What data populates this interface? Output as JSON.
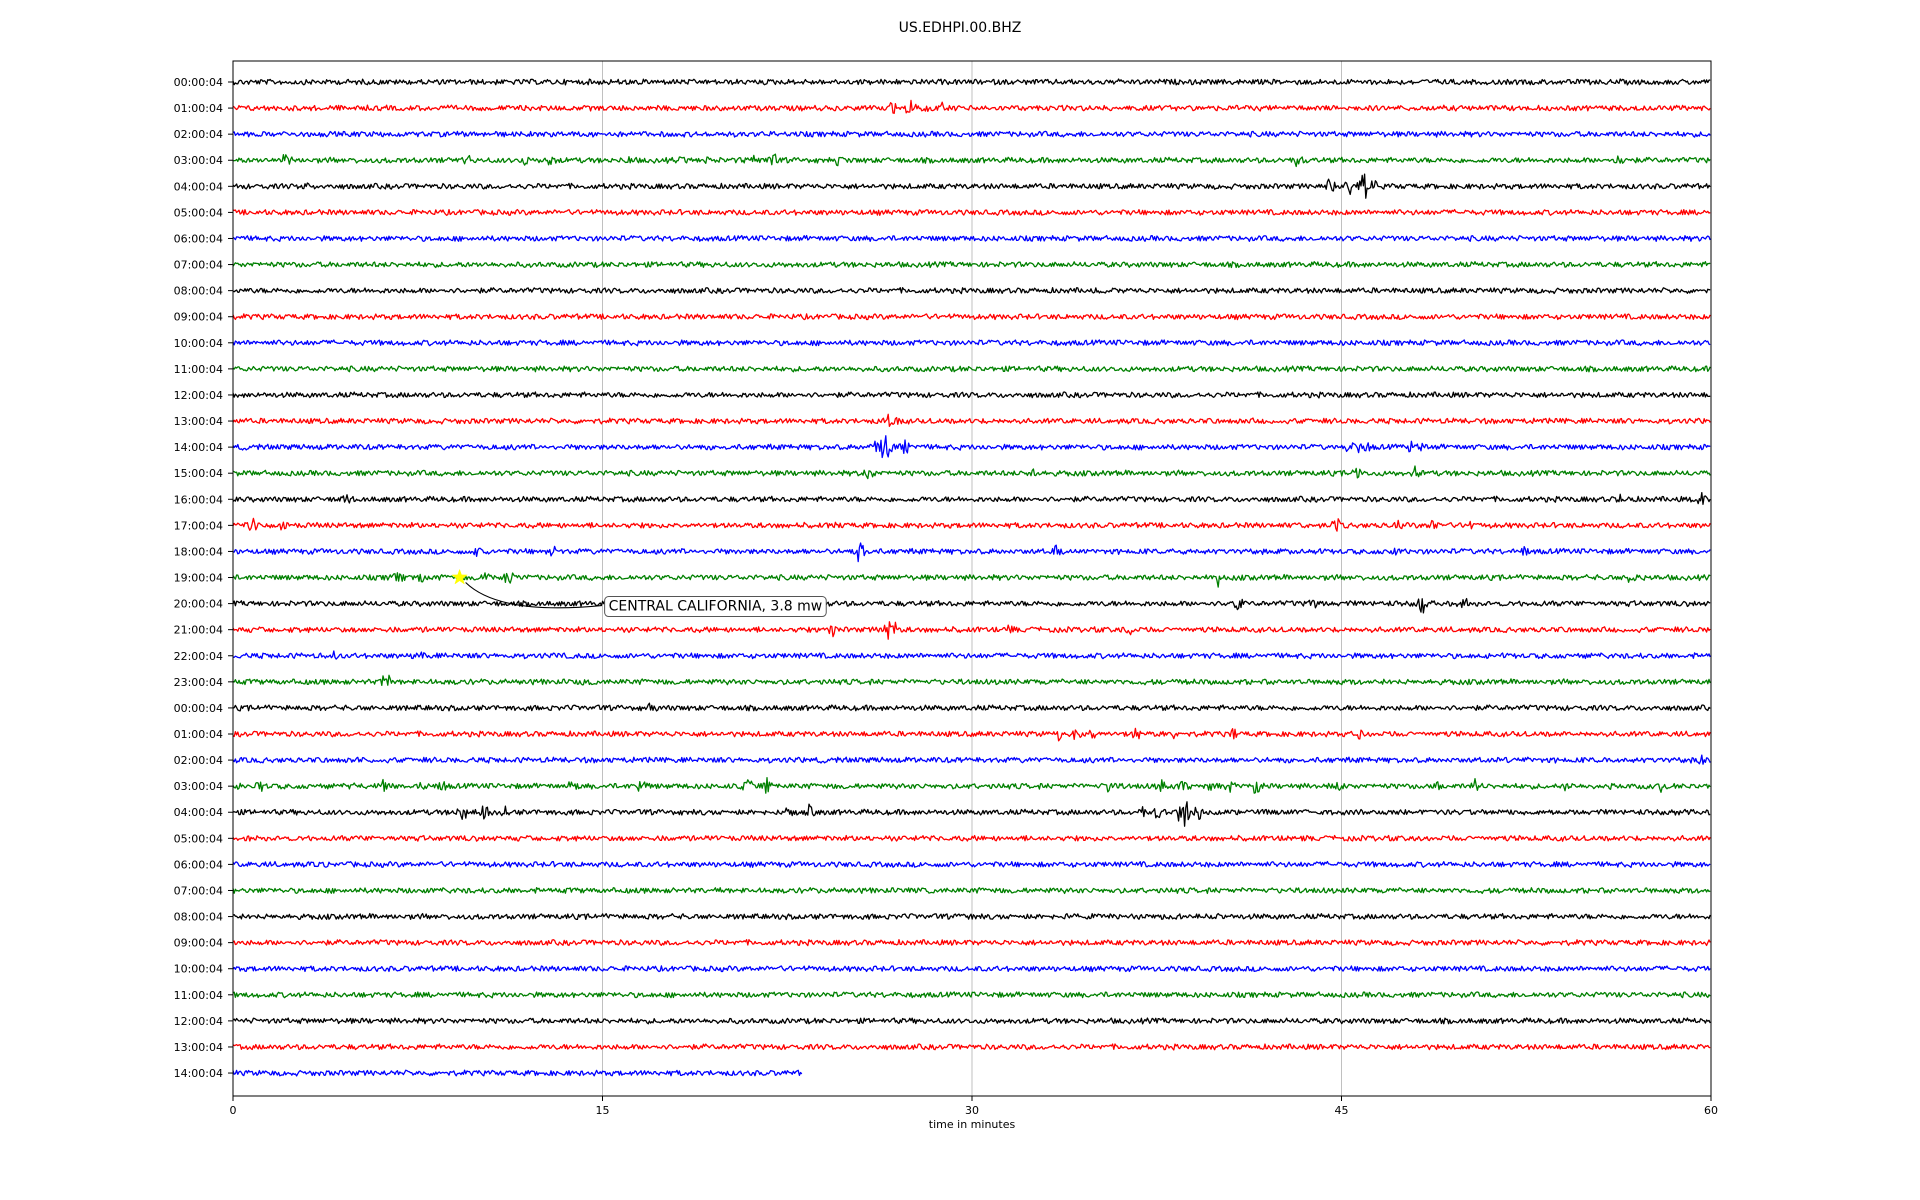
{
  "chart_data": {
    "type": "line",
    "title": "US.EDHPI.00.BHZ",
    "xlabel": "time in minutes",
    "ylabel": "",
    "xlim": [
      0,
      60
    ],
    "xticks": [
      "0",
      "15",
      "30",
      "45",
      "60"
    ],
    "xtick_values": [
      0,
      15,
      30,
      45,
      60
    ],
    "grid": "vertical",
    "colors": [
      "#000000",
      "#ff0000",
      "#0000ff",
      "#008000"
    ],
    "rows": [
      {
        "label": "00:00:04",
        "end": 60,
        "bursts": [
          [
            16.2,
            4
          ]
        ]
      },
      {
        "label": "01:00:04",
        "end": 60,
        "bursts": [
          [
            26.8,
            10
          ],
          [
            27.5,
            14
          ],
          [
            28.2,
            10
          ],
          [
            28.8,
            8
          ]
        ]
      },
      {
        "label": "02:00:04",
        "end": 60,
        "bursts": []
      },
      {
        "label": "03:00:04",
        "end": 60,
        "bursts": [
          [
            2.2,
            10
          ],
          [
            9.5,
            8
          ],
          [
            11.8,
            10
          ],
          [
            12.9,
            10
          ],
          [
            16.0,
            8
          ],
          [
            18.2,
            6
          ],
          [
            19.3,
            6
          ],
          [
            21.1,
            10
          ],
          [
            21.9,
            14
          ],
          [
            24.6,
            8
          ],
          [
            43.2,
            10
          ],
          [
            56.3,
            8
          ]
        ]
      },
      {
        "label": "04:00:04",
        "end": 60,
        "bursts": [
          [
            3.0,
            6
          ],
          [
            44.5,
            14
          ],
          [
            45.3,
            12
          ],
          [
            45.8,
            30
          ],
          [
            46.3,
            10
          ]
        ]
      },
      {
        "label": "05:00:04",
        "end": 60,
        "bursts": []
      },
      {
        "label": "06:00:04",
        "end": 60,
        "bursts": []
      },
      {
        "label": "07:00:04",
        "end": 60,
        "bursts": []
      },
      {
        "label": "08:00:04",
        "end": 60,
        "bursts": [
          [
            35.4,
            4
          ]
        ]
      },
      {
        "label": "09:00:04",
        "end": 60,
        "bursts": []
      },
      {
        "label": "10:00:04",
        "end": 60,
        "bursts": []
      },
      {
        "label": "11:00:04",
        "end": 60,
        "bursts": []
      },
      {
        "label": "12:00:04",
        "end": 60,
        "bursts": []
      },
      {
        "label": "13:00:04",
        "end": 60,
        "bursts": [
          [
            26.6,
            10
          ],
          [
            27.0,
            6
          ]
        ]
      },
      {
        "label": "14:00:04",
        "end": 60,
        "bursts": [
          [
            26.1,
            12
          ],
          [
            26.5,
            28
          ],
          [
            27.3,
            10
          ],
          [
            45.2,
            10
          ],
          [
            45.6,
            10
          ],
          [
            46.0,
            8
          ],
          [
            47.8,
            8
          ],
          [
            48.2,
            8
          ]
        ]
      },
      {
        "label": "15:00:04",
        "end": 60,
        "bursts": [
          [
            25.8,
            8
          ],
          [
            32.5,
            8
          ],
          [
            45.6,
            12
          ],
          [
            48.0,
            8
          ]
        ]
      },
      {
        "label": "16:00:04",
        "end": 60,
        "bursts": [
          [
            4.6,
            6
          ],
          [
            56.4,
            12
          ],
          [
            59.6,
            12
          ]
        ]
      },
      {
        "label": "17:00:04",
        "end": 60,
        "bursts": [
          [
            0.8,
            14
          ],
          [
            2.0,
            12
          ],
          [
            24.4,
            6
          ],
          [
            43.5,
            6
          ],
          [
            44.8,
            10
          ],
          [
            47.3,
            6
          ],
          [
            48.7,
            8
          ],
          [
            50.3,
            6
          ]
        ]
      },
      {
        "label": "18:00:04",
        "end": 60,
        "bursts": [
          [
            9.9,
            8
          ],
          [
            13.0,
            8
          ],
          [
            25.5,
            18
          ],
          [
            33.4,
            8
          ],
          [
            47.2,
            6
          ],
          [
            52.4,
            8
          ]
        ]
      },
      {
        "label": "19:00:04",
        "end": 60,
        "bursts": [
          [
            6.7,
            8
          ],
          [
            7.6,
            10
          ],
          [
            11.2,
            14
          ],
          [
            10.3,
            8
          ],
          [
            40.0,
            10
          ],
          [
            56.8,
            10
          ]
        ]
      },
      {
        "label": "20:00:04",
        "end": 60,
        "bursts": [
          [
            21.3,
            10
          ],
          [
            40.8,
            10
          ],
          [
            43.9,
            10
          ],
          [
            48.3,
            12
          ],
          [
            50.0,
            8
          ]
        ]
      },
      {
        "label": "21:00:04",
        "end": 60,
        "bursts": [
          [
            24.3,
            12
          ],
          [
            26.7,
            22
          ],
          [
            31.5,
            8
          ],
          [
            36.4,
            8
          ]
        ]
      },
      {
        "label": "22:00:04",
        "end": 60,
        "bursts": [
          [
            4.1,
            6
          ],
          [
            7.6,
            6
          ],
          [
            13.5,
            4
          ],
          [
            51.1,
            4
          ]
        ]
      },
      {
        "label": "23:00:04",
        "end": 60,
        "bursts": [
          [
            6.2,
            12
          ],
          [
            14.2,
            8
          ]
        ]
      },
      {
        "label": "00:00:04",
        "end": 60,
        "bursts": [
          [
            17.0,
            8
          ]
        ]
      },
      {
        "label": "01:00:04",
        "end": 60,
        "bursts": [
          [
            33.5,
            8
          ],
          [
            34.2,
            10
          ],
          [
            34.9,
            8
          ],
          [
            36.7,
            10
          ],
          [
            38.2,
            6
          ],
          [
            40.6,
            8
          ],
          [
            45.7,
            8
          ],
          [
            54.3,
            4
          ]
        ]
      },
      {
        "label": "02:00:04",
        "end": 60,
        "bursts": [
          [
            5.1,
            4
          ],
          [
            52.3,
            4
          ],
          [
            56.0,
            4
          ],
          [
            59.6,
            8
          ]
        ]
      },
      {
        "label": "03:00:04",
        "end": 60,
        "bursts": [
          [
            0.4,
            8
          ],
          [
            1.1,
            8
          ],
          [
            5.0,
            6
          ],
          [
            6.1,
            8
          ],
          [
            7.8,
            12
          ],
          [
            8.5,
            8
          ],
          [
            13.8,
            10
          ],
          [
            16.6,
            10
          ],
          [
            20.9,
            10
          ],
          [
            21.7,
            10
          ],
          [
            35.6,
            10
          ],
          [
            37.7,
            10
          ],
          [
            38.6,
            14
          ],
          [
            39.7,
            8
          ],
          [
            40.5,
            10
          ],
          [
            41.6,
            14
          ],
          [
            44.9,
            8
          ],
          [
            48.8,
            8
          ],
          [
            50.4,
            10
          ],
          [
            54.1,
            6
          ],
          [
            56.0,
            6
          ],
          [
            58.0,
            8
          ]
        ]
      },
      {
        "label": "04:00:04",
        "end": 60,
        "bursts": [
          [
            9.3,
            14
          ],
          [
            10.2,
            10
          ],
          [
            11.0,
            8
          ],
          [
            22.5,
            10
          ],
          [
            23.4,
            10
          ],
          [
            36.9,
            10
          ],
          [
            37.6,
            10
          ],
          [
            38.6,
            30
          ],
          [
            39.1,
            18
          ]
        ]
      },
      {
        "label": "05:00:04",
        "end": 60,
        "bursts": []
      },
      {
        "label": "06:00:04",
        "end": 60,
        "bursts": [
          [
            3.9,
            3
          ]
        ]
      },
      {
        "label": "07:00:04",
        "end": 60,
        "bursts": [
          [
            7.9,
            3
          ]
        ]
      },
      {
        "label": "08:00:04",
        "end": 60,
        "bursts": [
          [
            29.9,
            4
          ],
          [
            40.0,
            4
          ]
        ]
      },
      {
        "label": "09:00:04",
        "end": 60,
        "bursts": []
      },
      {
        "label": "10:00:04",
        "end": 60,
        "bursts": []
      },
      {
        "label": "11:00:04",
        "end": 60,
        "bursts": []
      },
      {
        "label": "12:00:04",
        "end": 60,
        "bursts": []
      },
      {
        "label": "13:00:04",
        "end": 60,
        "bursts": []
      },
      {
        "label": "14:00:04",
        "end": 23.1,
        "bursts": []
      }
    ],
    "event": {
      "label": "CENTRAL CALIFORNIA, 3.8 mw",
      "row": 19,
      "x": 9.2,
      "marker": "star",
      "marker_color": "#ffff00"
    }
  }
}
